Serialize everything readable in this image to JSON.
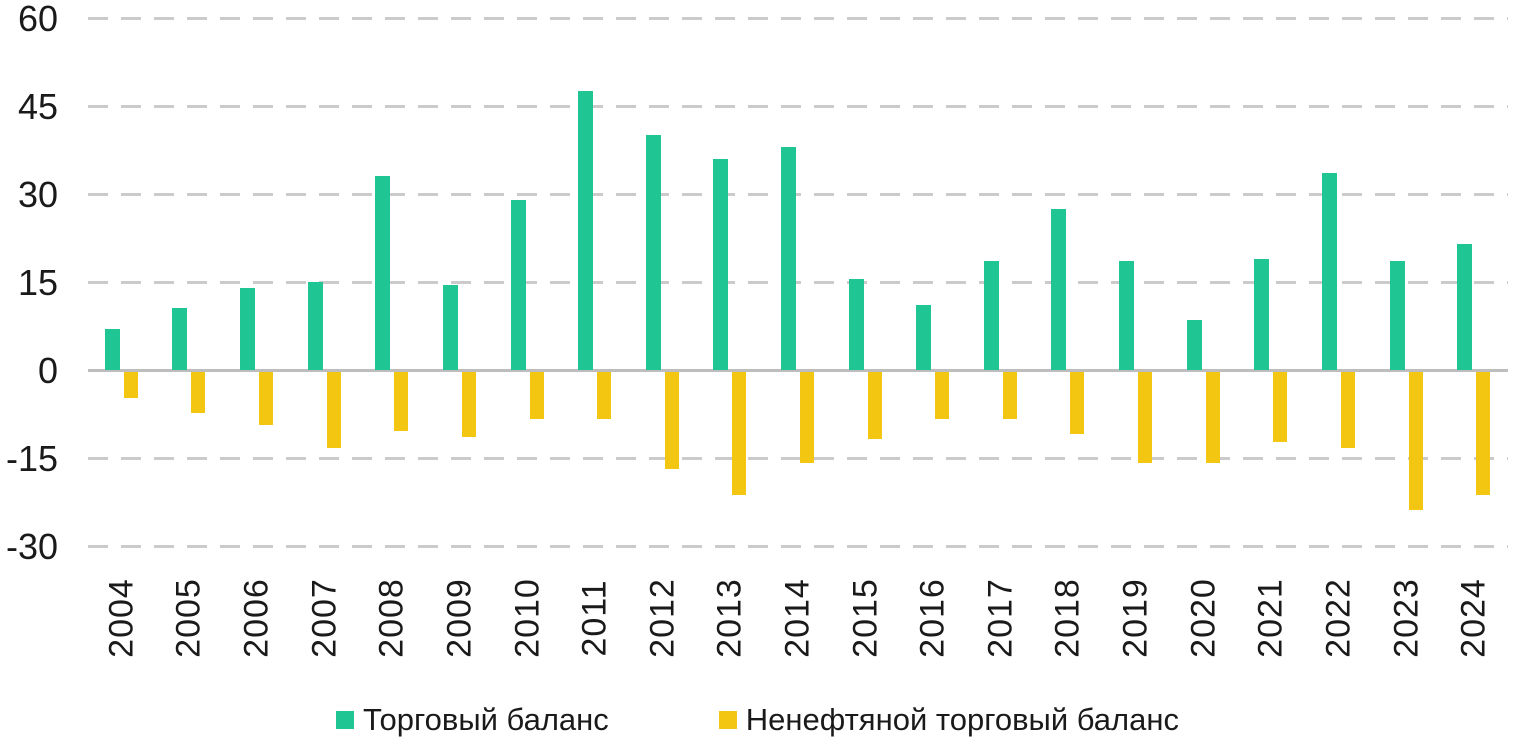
{
  "chart_data": {
    "type": "bar",
    "title": "",
    "xlabel": "",
    "ylabel": "",
    "categories": [
      "2004",
      "2005",
      "2006",
      "2007",
      "2008",
      "2009",
      "2010",
      "2011",
      "2012",
      "2013",
      "2014",
      "2015",
      "2016",
      "2017",
      "2018",
      "2019",
      "2020",
      "2021",
      "2022",
      "2023",
      "2024"
    ],
    "series": [
      {
        "name": "Торговый баланс",
        "color": "#1fc593",
        "values": [
          7,
          10.5,
          14,
          15,
          33,
          14.5,
          29,
          47.5,
          40,
          36,
          38,
          15.5,
          11,
          18.5,
          27.5,
          18.5,
          8.5,
          19,
          33.5,
          18.5,
          21.5
        ]
      },
      {
        "name": "Ненефтяной торговый баланс",
        "color": "#f3c711",
        "values": [
          -4.5,
          -7,
          -9,
          -13,
          -10,
          -11,
          -8,
          -8,
          -16.5,
          -21,
          -15.5,
          -11.5,
          -8,
          -8,
          -10.5,
          -15.5,
          -15.5,
          -12,
          -13,
          -23.5,
          -21
        ]
      }
    ],
    "yticks": [
      60,
      45,
      30,
      15,
      0,
      -15,
      -30
    ],
    "ylim": [
      -30,
      60
    ],
    "grid": "horizontal-dashed",
    "legend_position": "bottom",
    "x_tick_rotation": -90
  },
  "style": {
    "gridline_color": "#cbcbcb",
    "zero_line_color": "#bdbdbd",
    "text_color": "#1a1a1a",
    "background": "#ffffff"
  }
}
